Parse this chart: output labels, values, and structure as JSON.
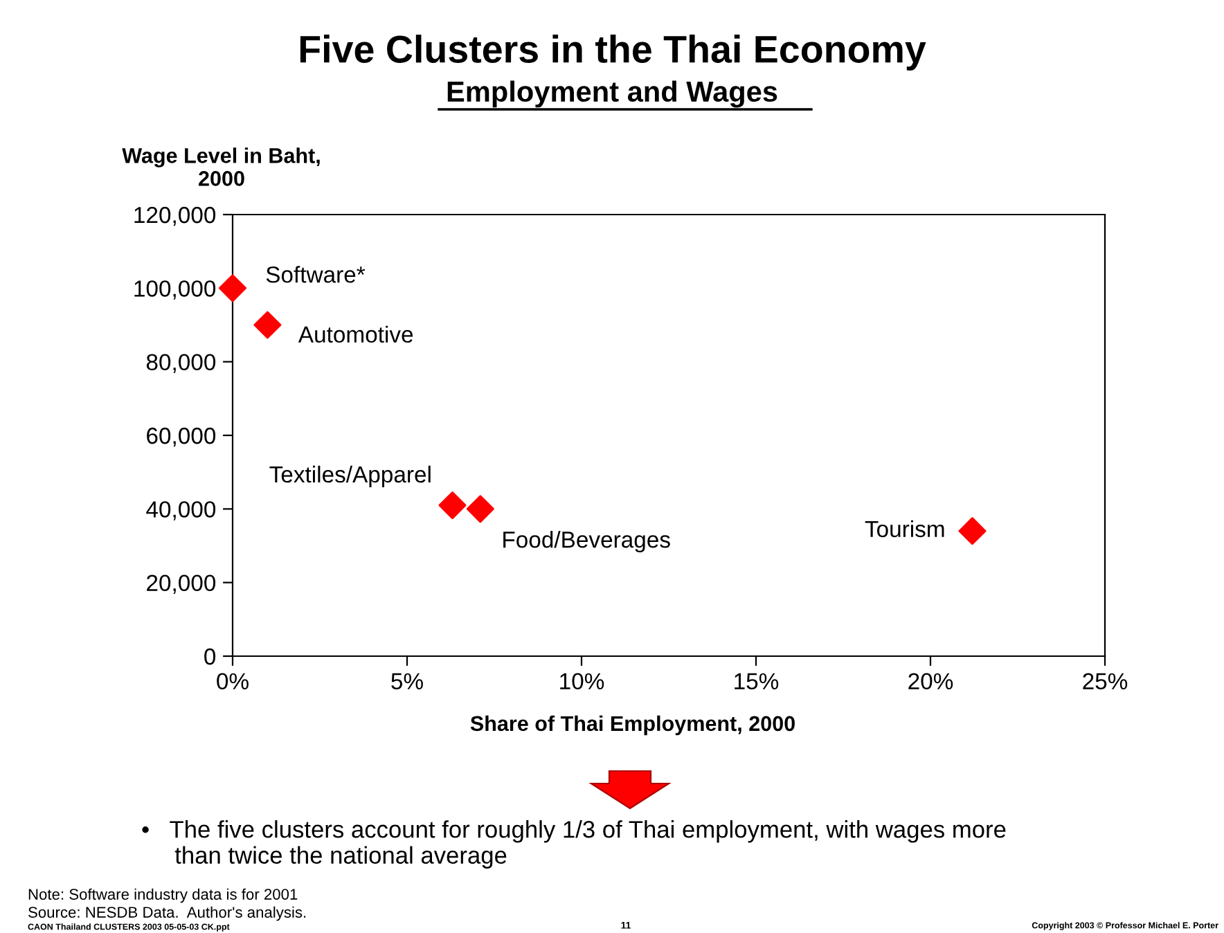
{
  "chart_data": {
    "type": "scatter",
    "title": "Five Clusters in the Thai Economy",
    "subtitle": "Employment and Wages",
    "xlabel": "Share of Thai Employment, 2000",
    "ylabel": "Wage Level in Baht,\n2000",
    "x": [
      0,
      1.0,
      6.3,
      7.1,
      21.2
    ],
    "series": [
      {
        "color": "#ff0000",
        "values": [
          100000,
          90000,
          41000,
          40000,
          34000
        ]
      }
    ],
    "marker": "diamond",
    "grid": false,
    "legend": false,
    "xlim": [
      0,
      25
    ],
    "xticks": [
      {
        "value": 0,
        "label": "0%"
      },
      {
        "value": 5,
        "label": "5%"
      },
      {
        "value": 10,
        "label": "10%"
      },
      {
        "value": 15,
        "label": "15%"
      },
      {
        "value": 20,
        "label": "20%"
      },
      {
        "value": 25,
        "label": "25%"
      }
    ],
    "ylim": [
      0,
      120000
    ],
    "yticks": [
      {
        "value": 0,
        "label": "0"
      },
      {
        "value": 20000,
        "label": "20,000"
      },
      {
        "value": 40000,
        "label": "40,000"
      },
      {
        "value": 60000,
        "label": "60,000"
      },
      {
        "value": 80000,
        "label": "80,000"
      },
      {
        "value": 100000,
        "label": "100,000"
      },
      {
        "value": 120000,
        "label": "120,000"
      }
    ],
    "annotations": [
      {
        "text": "Software*",
        "x": 0,
        "y": 100000
      },
      {
        "text": "Automotive",
        "x": 1.0,
        "y": 90000
      },
      {
        "text": "Textiles/Apparel",
        "x": 6.3,
        "y": 41000
      },
      {
        "text": "Food/Beverages",
        "x": 7.1,
        "y": 40000
      },
      {
        "text": "Tourism",
        "x": 21.2,
        "y": 34000
      },
      "•   The five clusters account for roughly 1/3 of Thai employment, with wages more\n     than twice the national average",
      "Note: Software industry data is for 2001",
      "Source: NESDB Data.  Author's analysis.",
      "CAON Thailand CLUSTERS 2003 05-05-03 CK.ppt",
      "11",
      "Copyright 2003 © Professor Michael E. Porter"
    ]
  }
}
